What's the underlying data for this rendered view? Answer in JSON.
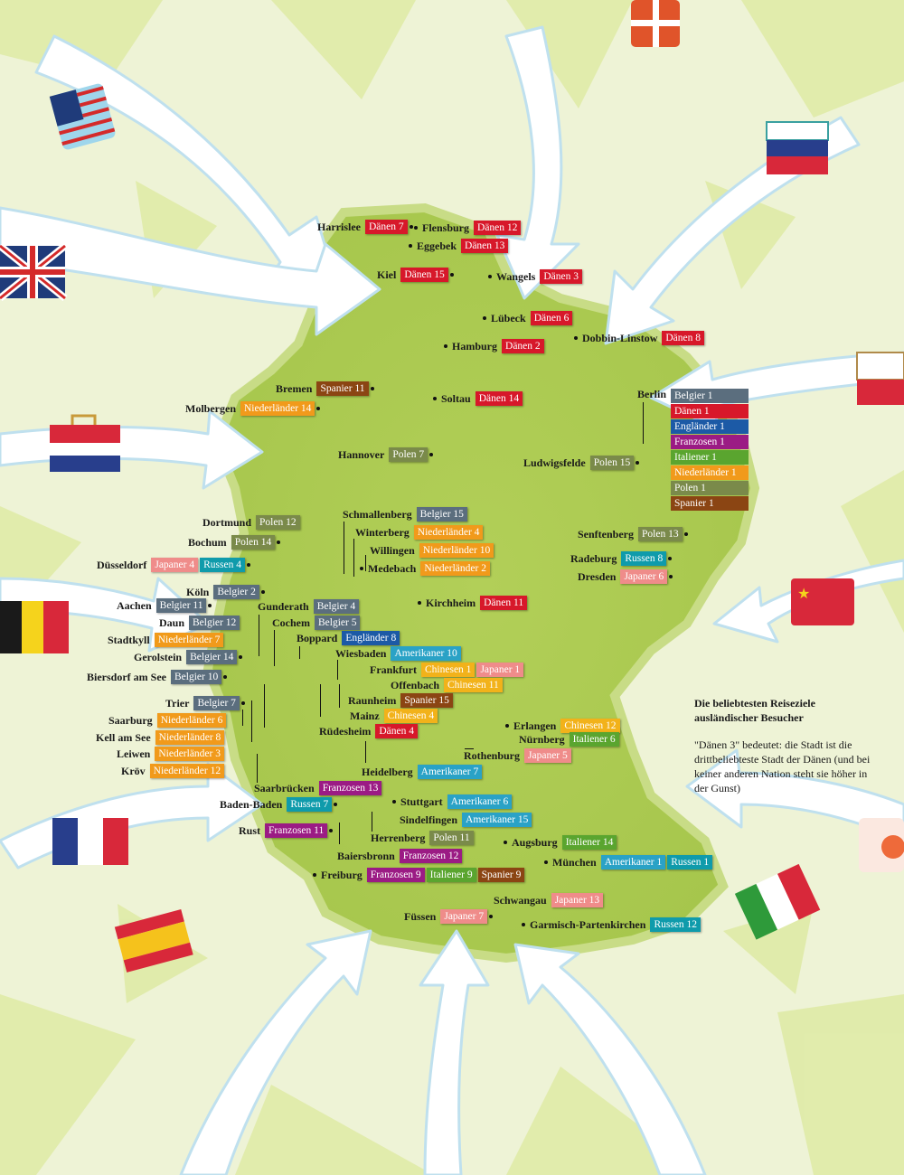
{
  "legend": {
    "title": "Die beliebtesten Reiseziele ausländischer Besucher",
    "explanation": "\"Dänen 3\" bedeutet: die Stadt ist die drittbeliebteste Stadt der Dänen (und bei keiner anderen Nation steht sie höher in der Gunst)"
  },
  "colors": {
    "Dänen": "#d7182a",
    "Polen": "#7a8a4a",
    "Belgier": "#5b6e7e",
    "Niederländer": "#f19a1b",
    "Russen": "#0f9bab",
    "Japaner": "#ef8c8a",
    "Spanier": "#8b4513",
    "Engländer": "#1c5aa6",
    "Franzosen": "#9b1b84",
    "Italiener": "#5aa52f",
    "Amerikaner": "#2aa2c6",
    "Chinesen": "#f2b21a",
    "map_fill": "#b6d25a",
    "arrow_fill": "#ffffff"
  },
  "suitcases": [
    "usa-flag-suitcase-icon",
    "uk-flag-suitcase-icon",
    "netherlands-flag-suitcase-icon",
    "belgium-flag-suitcase-icon",
    "france-flag-suitcase-icon",
    "spain-flag-suitcase-icon",
    "denmark-flag-suitcase-icon",
    "russia-flag-suitcase-icon",
    "poland-flag-suitcase-icon",
    "china-flag-suitcase-icon",
    "japan-flag-suitcase-icon",
    "italy-flag-suitcase-icon"
  ],
  "berlin": {
    "name": "Berlin",
    "tags": [
      "Belgier 1",
      "Dänen 1",
      "Engländer 1",
      "Franzosen 1",
      "Italiener 1",
      "Niederländer 1",
      "Polen 1",
      "Spanier 1"
    ]
  },
  "cities": [
    {
      "name": "Harrislee",
      "tags": [
        "Dänen 7"
      ],
      "dot": "right"
    },
    {
      "name": "Flensburg",
      "tags": [
        "Dänen 12"
      ],
      "dot": "left"
    },
    {
      "name": "Eggebek",
      "tags": [
        "Dänen 13"
      ],
      "dot": "left"
    },
    {
      "name": "Kiel",
      "tags": [
        "Dänen 15"
      ],
      "dot": "right"
    },
    {
      "name": "Wangels",
      "tags": [
        "Dänen 3"
      ],
      "dot": "left"
    },
    {
      "name": "Lübeck",
      "tags": [
        "Dänen 6"
      ],
      "dot": "left"
    },
    {
      "name": "Hamburg",
      "tags": [
        "Dänen 2"
      ],
      "dot": "left"
    },
    {
      "name": "Dobbin-Linstow",
      "tags": [
        "Dänen 8"
      ],
      "dot": "left"
    },
    {
      "name": "Bremen",
      "tags": [
        "Spanier 11"
      ],
      "dot": "right"
    },
    {
      "name": "Molbergen",
      "tags": [
        "Niederländer 14"
      ],
      "dot": "right"
    },
    {
      "name": "Soltau",
      "tags": [
        "Dänen 14"
      ],
      "dot": "left"
    },
    {
      "name": "Hannover",
      "tags": [
        "Polen 7"
      ],
      "dot": "right"
    },
    {
      "name": "Ludwigsfelde",
      "tags": [
        "Polen 15"
      ],
      "dot": "right"
    },
    {
      "name": "Schmallenberg",
      "tags": [
        "Belgier 15"
      ],
      "dot": "none"
    },
    {
      "name": "Dortmund",
      "tags": [
        "Polen 12"
      ],
      "dot": "none"
    },
    {
      "name": "Winterberg",
      "tags": [
        "Niederländer 4"
      ],
      "dot": "none"
    },
    {
      "name": "Bochum",
      "tags": [
        "Polen 14"
      ],
      "dot": "right"
    },
    {
      "name": "Willingen",
      "tags": [
        "Niederländer 10"
      ],
      "dot": "none"
    },
    {
      "name": "Düsseldorf",
      "tags": [
        "Japaner 4",
        "Russen 4"
      ],
      "dot": "right"
    },
    {
      "name": "Medebach",
      "tags": [
        "Niederländer 2"
      ],
      "dot": "left"
    },
    {
      "name": "Senftenberg",
      "tags": [
        "Polen 13"
      ],
      "dot": "right"
    },
    {
      "name": "Radeburg",
      "tags": [
        "Russen 8"
      ],
      "dot": "right"
    },
    {
      "name": "Dresden",
      "tags": [
        "Japaner 6"
      ],
      "dot": "right"
    },
    {
      "name": "Köln",
      "tags": [
        "Belgier 2"
      ],
      "dot": "right"
    },
    {
      "name": "Aachen",
      "tags": [
        "Belgier 11"
      ],
      "dot": "right"
    },
    {
      "name": "Gunderath",
      "tags": [
        "Belgier 4"
      ],
      "dot": "none"
    },
    {
      "name": "Kirchheim",
      "tags": [
        "Dänen 11"
      ],
      "dot": "left"
    },
    {
      "name": "Daun",
      "tags": [
        "Belgier 12"
      ],
      "dot": "none"
    },
    {
      "name": "Cochem",
      "tags": [
        "Belgier 5"
      ],
      "dot": "none"
    },
    {
      "name": "Boppard",
      "tags": [
        "Engländer 8"
      ],
      "dot": "none"
    },
    {
      "name": "Stadtkyll",
      "tags": [
        "Niederländer 7"
      ],
      "dot": "none"
    },
    {
      "name": "Wiesbaden",
      "tags": [
        "Amerikaner 10"
      ],
      "dot": "none"
    },
    {
      "name": "Gerolstein",
      "tags": [
        "Belgier 14"
      ],
      "dot": "right"
    },
    {
      "name": "Frankfurt",
      "tags": [
        "Chinesen 1",
        "Japaner 1"
      ],
      "dot": "none"
    },
    {
      "name": "Biersdorf am See",
      "tags": [
        "Belgier 10"
      ],
      "dot": "right"
    },
    {
      "name": "Offenbach",
      "tags": [
        "Chinesen 11"
      ],
      "dot": "none"
    },
    {
      "name": "Raunheim",
      "tags": [
        "Spanier 15"
      ],
      "dot": "none"
    },
    {
      "name": "Trier",
      "tags": [
        "Belgier 7"
      ],
      "dot": "right"
    },
    {
      "name": "Mainz",
      "tags": [
        "Chinesen 4"
      ],
      "dot": "none"
    },
    {
      "name": "Saarburg",
      "tags": [
        "Niederländer 6"
      ],
      "dot": "none"
    },
    {
      "name": "Rüdesheim",
      "tags": [
        "Dänen 4"
      ],
      "dot": "none"
    },
    {
      "name": "Erlangen",
      "tags": [
        "Chinesen 12"
      ],
      "dot": "left"
    },
    {
      "name": "Kell am See",
      "tags": [
        "Niederländer 8"
      ],
      "dot": "none"
    },
    {
      "name": "Nürnberg",
      "tags": [
        "Italiener 6"
      ],
      "dot": "none"
    },
    {
      "name": "Leiwen",
      "tags": [
        "Niederländer 3"
      ],
      "dot": "none"
    },
    {
      "name": "Rothenburg",
      "tags": [
        "Japaner 5"
      ],
      "dot": "none"
    },
    {
      "name": "Kröv",
      "tags": [
        "Niederländer 12"
      ],
      "dot": "none"
    },
    {
      "name": "Heidelberg",
      "tags": [
        "Amerikaner 7"
      ],
      "dot": "none"
    },
    {
      "name": "Saarbrücken",
      "tags": [
        "Franzosen 13"
      ],
      "dot": "none"
    },
    {
      "name": "Stuttgart",
      "tags": [
        "Amerikaner 6"
      ],
      "dot": "left"
    },
    {
      "name": "Baden-Baden",
      "tags": [
        "Russen 7"
      ],
      "dot": "right"
    },
    {
      "name": "Sindelfingen",
      "tags": [
        "Amerikaner 15"
      ],
      "dot": "none"
    },
    {
      "name": "Rust",
      "tags": [
        "Franzosen 11"
      ],
      "dot": "right"
    },
    {
      "name": "Herrenberg",
      "tags": [
        "Polen 11"
      ],
      "dot": "none"
    },
    {
      "name": "Augsburg",
      "tags": [
        "Italiener 14"
      ],
      "dot": "left"
    },
    {
      "name": "Baiersbronn",
      "tags": [
        "Franzosen 12"
      ],
      "dot": "none"
    },
    {
      "name": "München",
      "tags": [
        "Amerikaner 1",
        "Russen 1"
      ],
      "dot": "left"
    },
    {
      "name": "Freiburg",
      "tags": [
        "Franzosen 9",
        "Italiener 9",
        "Spanier 9"
      ],
      "dot": "left"
    },
    {
      "name": "Schwangau",
      "tags": [
        "Japaner 13"
      ],
      "dot": "none"
    },
    {
      "name": "Füssen",
      "tags": [
        "Japaner 7"
      ],
      "dot": "right"
    },
    {
      "name": "Garmisch-Partenkirchen",
      "tags": [
        "Russen 12"
      ],
      "dot": "left"
    }
  ]
}
